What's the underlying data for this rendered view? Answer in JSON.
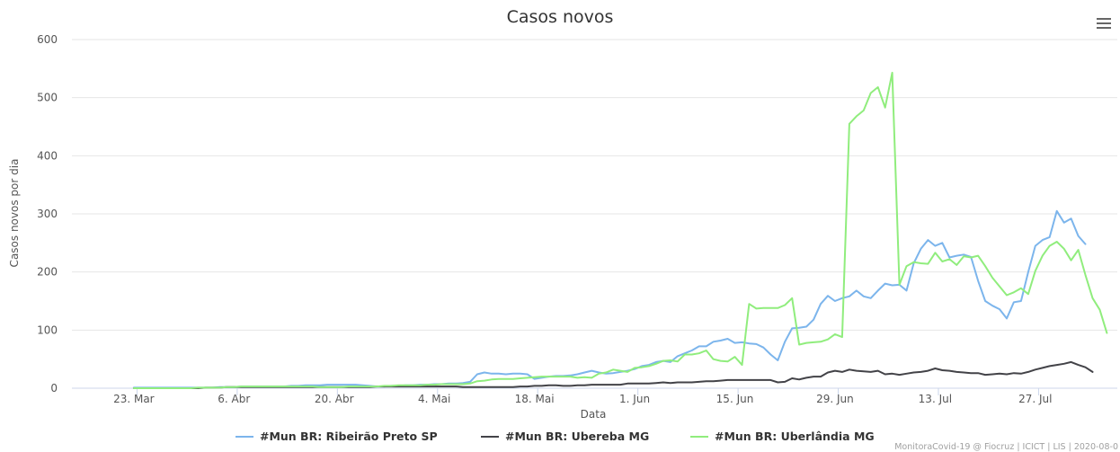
{
  "chart_data": {
    "type": "line",
    "title": "Casos novos",
    "xlabel": "Data",
    "ylabel": "Casos novos por dia",
    "ylim": [
      0,
      600
    ],
    "yticks": [
      0,
      100,
      200,
      300,
      400,
      500,
      600
    ],
    "grid": true,
    "legend_position": "bottom",
    "x_start": "2020-03-17",
    "xticks": [
      {
        "day": 6,
        "label": "23. Mar"
      },
      {
        "day": 20,
        "label": "6. Abr"
      },
      {
        "day": 34,
        "label": "20. Abr"
      },
      {
        "day": 48,
        "label": "4. Mai"
      },
      {
        "day": 62,
        "label": "18. Mai"
      },
      {
        "day": 76,
        "label": "1. Jun"
      },
      {
        "day": 90,
        "label": "15. Jun"
      },
      {
        "day": 104,
        "label": "29. Jun"
      },
      {
        "day": 118,
        "label": "13. Jul"
      },
      {
        "day": 132,
        "label": "27. Jul"
      }
    ],
    "series": [
      {
        "name": "#Mun BR: Ribeirão Preto SP",
        "color": "#7cb5ec",
        "start_day": 6,
        "values": [
          1,
          1,
          1,
          1,
          1,
          1,
          1,
          1,
          1,
          1,
          1,
          1,
          2,
          2,
          2,
          3,
          3,
          3,
          3,
          3,
          3,
          3,
          4,
          4,
          5,
          5,
          5,
          6,
          6,
          6,
          6,
          6,
          5,
          4,
          3,
          3,
          4,
          4,
          5,
          5,
          6,
          6,
          7,
          7,
          8,
          8,
          9,
          11,
          24,
          27,
          25,
          25,
          24,
          25,
          25,
          24,
          16,
          18,
          20,
          21,
          21,
          22,
          24,
          27,
          30,
          27,
          25,
          26,
          28,
          30,
          33,
          38,
          40,
          45,
          47,
          45,
          55,
          60,
          65,
          72,
          72,
          80,
          82,
          85,
          78,
          79,
          77,
          76,
          70,
          58,
          48,
          80,
          103,
          104,
          106,
          118,
          145,
          159,
          150,
          155,
          158,
          168,
          158,
          155,
          168,
          180,
          177,
          178,
          168,
          215,
          240,
          255,
          245,
          250,
          225,
          228,
          230,
          226,
          185,
          150,
          142,
          136,
          120,
          148,
          150,
          200,
          245,
          255,
          260,
          305,
          285,
          292,
          262,
          248
        ]
      },
      {
        "name": "#Mun BR: Ubereba MG",
        "color": "#434348",
        "start_day": 6,
        "values": [
          0,
          0,
          0,
          0,
          0,
          0,
          0,
          0,
          0,
          0,
          1,
          1,
          1,
          2,
          2,
          2,
          2,
          2,
          2,
          2,
          2,
          2,
          2,
          2,
          2,
          2,
          2,
          2,
          2,
          2,
          2,
          2,
          2,
          2,
          3,
          3,
          3,
          3,
          3,
          3,
          3,
          3,
          3,
          3,
          3,
          3,
          2,
          2,
          2,
          2,
          2,
          2,
          2,
          2,
          3,
          3,
          4,
          4,
          5,
          5,
          4,
          4,
          5,
          5,
          6,
          6,
          6,
          6,
          6,
          8,
          8,
          8,
          8,
          9,
          10,
          9,
          10,
          10,
          10,
          11,
          12,
          12,
          13,
          14,
          14,
          14,
          14,
          14,
          14,
          14,
          10,
          11,
          17,
          15,
          18,
          20,
          20,
          27,
          30,
          28,
          32,
          30,
          29,
          28,
          30,
          24,
          25,
          23,
          25,
          27,
          28,
          30,
          34,
          31,
          30,
          28,
          27,
          26,
          26,
          23,
          24,
          25,
          24,
          26,
          25,
          28,
          32,
          35,
          38,
          40,
          42,
          45,
          40,
          36,
          28
        ]
      },
      {
        "name": "#Mun BR: Uberlândia MG",
        "color": "#90ed7d",
        "start_day": 6,
        "values": [
          0,
          0,
          0,
          0,
          0,
          0,
          0,
          0,
          0,
          1,
          1,
          1,
          1,
          2,
          2,
          3,
          3,
          3,
          3,
          3,
          3,
          3,
          3,
          3,
          3,
          3,
          2,
          2,
          2,
          2,
          3,
          3,
          3,
          3,
          3,
          4,
          4,
          5,
          5,
          5,
          5,
          6,
          6,
          7,
          7,
          7,
          7,
          8,
          12,
          13,
          15,
          16,
          16,
          16,
          17,
          18,
          19,
          20,
          20,
          20,
          20,
          20,
          18,
          19,
          18,
          25,
          27,
          32,
          30,
          28,
          35,
          36,
          38,
          42,
          47,
          48,
          46,
          58,
          58,
          60,
          65,
          50,
          47,
          46,
          54,
          40,
          145,
          137,
          138,
          138,
          138,
          143,
          155,
          75,
          78,
          79,
          80,
          84,
          93,
          88,
          455,
          468,
          478,
          508,
          518,
          483,
          543,
          178,
          210,
          217,
          215,
          214,
          233,
          218,
          222,
          212,
          227,
          225,
          228,
          210,
          190,
          175,
          160,
          165,
          172,
          162,
          202,
          228,
          245,
          252,
          240,
          220,
          238,
          195,
          155,
          135,
          95
        ]
      }
    ]
  },
  "credits": "MonitoraCovid-19 @ Fiocruz | ICICT | LIS | 2020-08-0"
}
